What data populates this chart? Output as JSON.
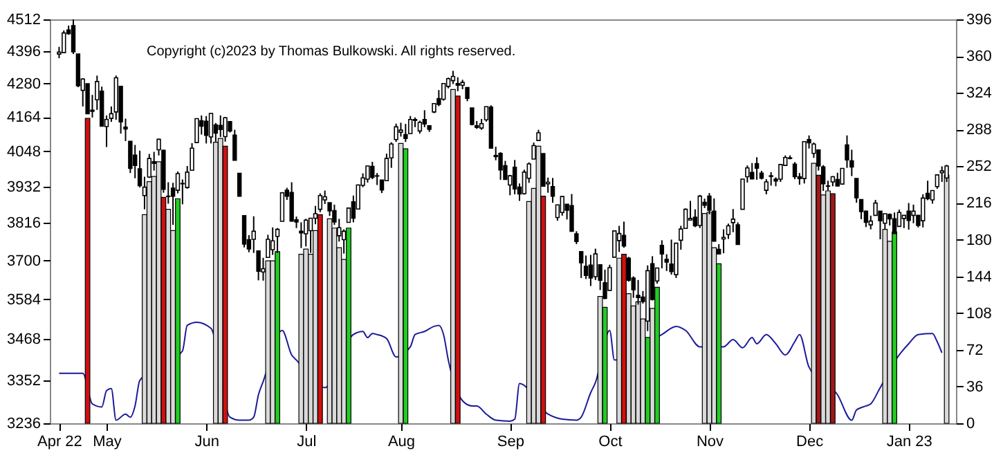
{
  "chart_data": {
    "type": "candlestick",
    "annotations": [
      "Copyright (c)2023 by Thomas Bulkowski. All rights reserved."
    ],
    "log": "y",
    "ylim": [
      3236,
      4512
    ],
    "yticks": [
      3236,
      3352,
      3468,
      3584,
      3700,
      3816,
      3932,
      4048,
      4164,
      4280,
      4396,
      4512
    ],
    "y2lim": [
      0,
      396
    ],
    "y2ticks": [
      0,
      36,
      72,
      108,
      144,
      180,
      216,
      252,
      288,
      324,
      360,
      396
    ],
    "categories": [
      "Apr 22",
      null,
      null,
      null,
      null,
      null,
      null,
      null,
      null,
      null,
      "May",
      null,
      null,
      null,
      null,
      null,
      null,
      null,
      null,
      null,
      null,
      null,
      null,
      null,
      null,
      null,
      null,
      null,
      null,
      null,
      null,
      "Jun",
      null,
      null,
      null,
      null,
      null,
      null,
      null,
      null,
      null,
      null,
      null,
      null,
      null,
      null,
      null,
      null,
      null,
      null,
      null,
      null,
      "Jul",
      null,
      null,
      null,
      null,
      null,
      null,
      null,
      null,
      null,
      null,
      null,
      null,
      null,
      null,
      null,
      null,
      null,
      null,
      null,
      "Aug",
      null,
      null,
      null,
      null,
      null,
      null,
      null,
      null,
      null,
      null,
      null,
      null,
      null,
      null,
      null,
      null,
      null,
      null,
      null,
      null,
      null,
      null,
      "Sep",
      null,
      null,
      null,
      null,
      null,
      null,
      null,
      null,
      null,
      null,
      null,
      null,
      null,
      null,
      null,
      null,
      null,
      null,
      null,
      null,
      "Oct",
      null,
      null,
      null,
      null,
      null,
      null,
      null,
      null,
      null,
      null,
      null,
      null,
      null,
      null,
      null,
      null,
      null,
      null,
      null,
      null,
      "Nov",
      null,
      null,
      null,
      null,
      null,
      null,
      null,
      null,
      null,
      null,
      null,
      null,
      null,
      null,
      null,
      null,
      null,
      null,
      null,
      null,
      "Dec",
      null,
      null,
      null,
      null,
      null,
      null,
      null,
      null,
      null,
      null,
      null,
      null,
      null,
      null,
      null,
      null,
      null,
      null,
      null,
      null,
      "Jan 23",
      null,
      null,
      null,
      null,
      null,
      null,
      null,
      null
    ],
    "ohlc": [
      [
        4385,
        4411,
        4370,
        4392
      ],
      [
        4390,
        4471,
        4390,
        4462
      ],
      [
        4473,
        4489,
        4455,
        4459
      ],
      [
        4489,
        4512,
        4385,
        4393
      ],
      [
        4385,
        4385,
        4267,
        4272
      ],
      [
        4256,
        4299,
        4200,
        4296
      ],
      [
        4279,
        4279,
        4175,
        4175
      ],
      [
        4187,
        4240,
        4162,
        4183
      ],
      [
        4223,
        4308,
        4188,
        4287
      ],
      [
        4253,
        4269,
        4131,
        4132
      ],
      [
        4131,
        4169,
        4062,
        4155
      ],
      [
        4159,
        4200,
        4147,
        4175
      ],
      [
        4181,
        4308,
        4154,
        4300
      ],
      [
        4270,
        4270,
        4107,
        4147
      ],
      [
        4129,
        4158,
        4082,
        4123
      ],
      [
        4081,
        4082,
        3976,
        3991
      ],
      [
        4035,
        4069,
        3959,
        4001
      ],
      [
        3990,
        4050,
        3929,
        3935
      ],
      [
        3903,
        3964,
        3859,
        3930
      ],
      [
        3963,
        4039,
        3960,
        4024
      ],
      [
        4013,
        4046,
        3984,
        4008
      ],
      [
        4053,
        4090,
        4034,
        4088
      ],
      [
        4051,
        4053,
        3912,
        3923
      ],
      [
        3900,
        3946,
        3877,
        3901
      ],
      [
        3927,
        3944,
        3810,
        3901
      ],
      [
        3920,
        3981,
        3910,
        3974
      ],
      [
        3942,
        3955,
        3875,
        3941
      ],
      [
        3929,
        3999,
        3925,
        3979
      ],
      [
        3985,
        4075,
        3984,
        4058
      ],
      [
        4077,
        4158,
        4077,
        4158
      ],
      [
        4151,
        4169,
        4104,
        4132
      ],
      [
        4149,
        4167,
        4074,
        4101
      ],
      [
        4096,
        4177,
        4074,
        4176
      ],
      [
        4137,
        4143,
        4080,
        4109
      ],
      [
        4135,
        4169,
        4096,
        4121
      ],
      [
        4097,
        4164,
        4080,
        4161
      ],
      [
        4148,
        4150,
        4111,
        4116
      ],
      [
        4102,
        4120,
        4017,
        4018
      ],
      [
        3975,
        3975,
        3900,
        3901
      ],
      [
        3839,
        3839,
        3740,
        3750
      ],
      [
        3764,
        3778,
        3725,
        3735
      ],
      [
        3765,
        3837,
        3723,
        3790
      ],
      [
        3729,
        3729,
        3640,
        3667
      ],
      [
        3665,
        3708,
        3639,
        3675
      ],
      [
        3709,
        3779,
        3709,
        3765
      ],
      [
        3733,
        3802,
        3717,
        3760
      ],
      [
        3774,
        3800,
        3723,
        3796
      ],
      [
        3821,
        3914,
        3821,
        3912
      ],
      [
        3920,
        3928,
        3889,
        3901
      ],
      [
        3913,
        3946,
        3820,
        3822
      ],
      [
        3826,
        3836,
        3800,
        3819
      ],
      [
        3790,
        3818,
        3738,
        3785
      ],
      [
        3782,
        3829,
        3743,
        3825
      ],
      [
        3792,
        3832,
        3723,
        3831
      ],
      [
        3831,
        3870,
        3812,
        3845
      ],
      [
        3859,
        3910,
        3850,
        3903
      ],
      [
        3889,
        3919,
        3876,
        3899
      ],
      [
        3880,
        3880,
        3838,
        3854
      ],
      [
        3855,
        3874,
        3810,
        3819
      ],
      [
        3776,
        3829,
        3758,
        3801
      ],
      [
        3764,
        3796,
        3721,
        3790
      ],
      [
        3818,
        3865,
        3818,
        3863
      ],
      [
        3883,
        3903,
        3818,
        3831
      ],
      [
        3860,
        3939,
        3860,
        3937
      ],
      [
        3936,
        3975,
        3930,
        3960
      ],
      [
        3956,
        4000,
        3945,
        3999
      ],
      [
        3998,
        4013,
        3956,
        3962
      ],
      [
        3966,
        3976,
        3937,
        3967
      ],
      [
        3953,
        3953,
        3911,
        3921
      ],
      [
        3951,
        4040,
        3951,
        4024
      ],
      [
        4026,
        4078,
        3993,
        4072
      ],
      [
        4087,
        4141,
        4079,
        4130
      ],
      [
        4112,
        4144,
        4097,
        4119
      ],
      [
        4104,
        4140,
        4079,
        4091
      ],
      [
        4107,
        4167,
        4107,
        4155
      ],
      [
        4155,
        4162,
        4129,
        4152
      ],
      [
        4116,
        4151,
        4107,
        4145
      ],
      [
        4155,
        4187,
        4129,
        4140
      ],
      [
        4134,
        4136,
        4113,
        4122
      ],
      [
        4181,
        4211,
        4177,
        4210
      ],
      [
        4227,
        4257,
        4201,
        4207
      ],
      [
        4225,
        4280,
        4220,
        4280
      ],
      [
        4270,
        4301,
        4263,
        4297
      ],
      [
        4290,
        4325,
        4278,
        4305
      ],
      [
        4280,
        4302,
        4253,
        4274
      ],
      [
        4274,
        4293,
        4260,
        4284
      ],
      [
        4266,
        4266,
        4218,
        4228
      ],
      [
        4195,
        4195,
        4135,
        4138
      ],
      [
        4134,
        4150,
        4123,
        4128
      ],
      [
        4126,
        4157,
        4120,
        4141
      ],
      [
        4154,
        4200,
        4148,
        4199
      ],
      [
        4198,
        4204,
        4057,
        4058
      ],
      [
        4034,
        4063,
        4018,
        4030
      ],
      [
        4041,
        4045,
        3954,
        3986
      ],
      [
        4000,
        4016,
        3954,
        3955
      ],
      [
        3937,
        3970,
        3904,
        3967
      ],
      [
        3995,
        4019,
        3907,
        3924
      ],
      [
        3930,
        3942,
        3886,
        3908
      ],
      [
        3909,
        3987,
        3906,
        3979
      ],
      [
        3959,
        4011,
        3944,
        4006
      ],
      [
        4022,
        4077,
        4022,
        4067
      ],
      [
        4084,
        4120,
        4084,
        4110
      ],
      [
        4040,
        4040,
        3933,
        3933
      ],
      [
        3941,
        3961,
        3912,
        3946
      ],
      [
        3932,
        3960,
        3880,
        3901
      ],
      [
        3833,
        3874,
        3823,
        3873
      ],
      [
        3849,
        3900,
        3839,
        3900
      ],
      [
        3875,
        3876,
        3827,
        3856
      ],
      [
        3871,
        3908,
        3789,
        3790
      ],
      [
        3782,
        3790,
        3750,
        3758
      ],
      [
        3727,
        3727,
        3647,
        3693
      ],
      [
        3682,
        3715,
        3644,
        3655
      ],
      [
        3686,
        3717,
        3623,
        3647
      ],
      [
        3651,
        3736,
        3641,
        3720
      ],
      [
        3687,
        3687,
        3611,
        3640
      ],
      [
        3633,
        3672,
        3584,
        3586
      ],
      [
        3610,
        3687,
        3610,
        3678
      ],
      [
        3710,
        3791,
        3710,
        3791
      ],
      [
        3761,
        3807,
        3726,
        3783
      ],
      [
        3777,
        3820,
        3739,
        3744
      ],
      [
        3707,
        3711,
        3636,
        3640
      ],
      [
        3647,
        3652,
        3588,
        3612
      ],
      [
        3595,
        3641,
        3568,
        3589
      ],
      [
        3590,
        3608,
        3571,
        3577
      ],
      [
        3520,
        3685,
        3491,
        3669
      ],
      [
        3690,
        3713,
        3580,
        3583
      ],
      [
        3638,
        3677,
        3630,
        3677
      ],
      [
        3746,
        3762,
        3676,
        3720
      ],
      [
        3703,
        3719,
        3668,
        3695
      ],
      [
        3689,
        3764,
        3657,
        3666
      ],
      [
        3657,
        3754,
        3647,
        3753
      ],
      [
        3762,
        3807,
        3733,
        3797
      ],
      [
        3799,
        3862,
        3799,
        3859
      ],
      [
        3825,
        3886,
        3824,
        3830
      ],
      [
        3834,
        3859,
        3803,
        3807
      ],
      [
        3808,
        3905,
        3800,
        3901
      ],
      [
        3881,
        3893,
        3863,
        3872
      ],
      [
        3901,
        3911,
        3843,
        3856
      ],
      [
        3853,
        3894,
        3758,
        3759
      ],
      [
        3734,
        3750,
        3720,
        3720
      ],
      [
        3766,
        3796,
        3722,
        3771
      ],
      [
        3780,
        3814,
        3766,
        3807
      ],
      [
        3817,
        3860,
        3787,
        3828
      ],
      [
        3810,
        3818,
        3749,
        3749
      ],
      [
        3859,
        3957,
        3859,
        3956
      ],
      [
        3964,
        4001,
        3945,
        3993
      ],
      [
        3978,
        4009,
        3956,
        3957
      ],
      [
        4007,
        4028,
        3954,
        3992
      ],
      [
        3976,
        3983,
        3955,
        3959
      ],
      [
        3920,
        3956,
        3907,
        3947
      ],
      [
        3967,
        3979,
        3935,
        3965
      ],
      [
        3956,
        3962,
        3933,
        3950
      ],
      [
        3956,
        4005,
        3947,
        4004
      ],
      [
        4001,
        4034,
        3999,
        4027
      ],
      [
        4024,
        4034,
        4021,
        4026
      ],
      [
        4005,
        4012,
        3956,
        3964
      ],
      [
        3964,
        3976,
        3938,
        3958
      ],
      [
        3958,
        4081,
        3942,
        4080
      ],
      [
        4087,
        4101,
        4057,
        4076
      ],
      [
        4041,
        4077,
        4026,
        4072
      ],
      [
        4052,
        4052,
        3984,
        3999
      ],
      [
        3996,
        4002,
        3918,
        3941
      ],
      [
        3934,
        3951,
        3919,
        3933
      ],
      [
        3947,
        3966,
        3933,
        3964
      ],
      [
        3955,
        3977,
        3933,
        3934
      ],
      [
        3940,
        3991,
        3939,
        3991
      ],
      [
        4069,
        4101,
        3993,
        4019
      ],
      [
        4016,
        4053,
        3966,
        3996
      ],
      [
        3958,
        3958,
        3880,
        3896
      ],
      [
        3890,
        3890,
        3828,
        3852
      ],
      [
        3853,
        3855,
        3803,
        3818
      ],
      [
        3810,
        3839,
        3796,
        3822
      ],
      [
        3840,
        3889,
        3839,
        3879
      ],
      [
        3853,
        3853,
        3765,
        3823
      ],
      [
        3815,
        3845,
        3797,
        3845
      ],
      [
        3843,
        3846,
        3808,
        3829
      ],
      [
        3829,
        3849,
        3783,
        3783
      ],
      [
        3805,
        3858,
        3805,
        3849
      ],
      [
        3830,
        3840,
        3800,
        3840
      ],
      [
        3853,
        3879,
        3795,
        3824
      ],
      [
        3840,
        3874,
        3815,
        3853
      ],
      [
        3840,
        3840,
        3802,
        3808
      ],
      [
        3823,
        3907,
        3802,
        3895
      ],
      [
        3910,
        3951,
        3888,
        3893
      ],
      [
        3889,
        3919,
        3877,
        3919
      ],
      [
        3932,
        3971,
        3925,
        3970
      ],
      [
        3977,
        3998,
        3947,
        3983
      ],
      [
        3960,
        4003,
        3947,
        3999
      ]
    ],
    "series": [
      {
        "type": "line",
        "axis": "y2",
        "color": "#1a1a9c",
        "values": [
          49,
          null,
          null,
          null,
          null,
          49,
          null,
          19,
          null,
          16,
          32,
          34,
          3,
          null,
          9,
          6,
          17,
          42,
          null,
          null,
          null,
          null,
          null,
          null,
          null,
          null,
          71,
          96,
          null,
          99,
          null,
          null,
          93,
          null,
          null,
          null,
          6,
          null,
          3,
          null,
          3,
          6,
          28,
          41,
          null,
          null,
          null,
          91,
          null,
          67,
          62,
          null,
          null,
          null,
          null,
          null,
          35,
          null,
          null,
          null,
          null,
          null,
          87,
          null,
          90,
          84,
          88,
          87,
          null,
          83,
          null,
          65,
          null,
          null,
          75,
          87,
          null,
          90,
          null,
          95,
          96,
          87,
          62,
          null,
          null,
          22,
          null,
          17,
          17,
          null,
          9,
          null,
          3,
          null,
          null,
          2,
          4,
          39,
          null,
          null,
          null,
          null,
          null,
          9,
          null,
          null,
          4,
          null,
          null,
          3,
          6,
          null,
          30,
          40,
          null,
          null,
          91,
          62,
          null,
          null,
          null,
          null,
          null,
          null,
          null,
          null,
          null,
          87,
          null,
          null,
          95,
          null,
          91,
          null,
          null,
          75,
          null,
          null,
          null,
          null,
          75,
          null,
          82,
          null,
          74,
          null,
          84,
          78,
          null,
          87,
          null,
          78,
          null,
          67,
          null,
          80,
          87,
          null,
          55,
          null,
          null,
          null,
          null,
          null,
          28,
          null,
          null,
          3,
          13,
          null,
          17,
          19,
          null,
          35,
          null,
          null,
          null,
          67,
          null,
          78,
          null,
          87,
          null,
          null,
          88,
          80,
          69,
          null
        ]
      },
      {
        "type": "bar",
        "values": [
          null,
          null,
          null,
          null,
          null,
          null,
          4159,
          null,
          null,
          null,
          null,
          null,
          null,
          null,
          null,
          null,
          null,
          null,
          3842,
          3948,
          3965,
          4013,
          3897,
          3859,
          3792,
          3893,
          null,
          null,
          null,
          null,
          null,
          null,
          null,
          4078,
          4091,
          4065,
          null,
          null,
          null,
          null,
          null,
          null,
          null,
          null,
          3699,
          3699,
          3727,
          null,
          null,
          null,
          null,
          3719,
          3735,
          3719,
          3792,
          3842,
          null,
          3829,
          3800,
          3739,
          3703,
          3800,
          null,
          null,
          null,
          null,
          null,
          null,
          null,
          null,
          null,
          null,
          4074,
          4056,
          null,
          null,
          null,
          null,
          null,
          null,
          null,
          null,
          null,
          4259,
          4236,
          null,
          null,
          null,
          null,
          null,
          null,
          null,
          null,
          null,
          null,
          null,
          null,
          null,
          null,
          3884,
          3926,
          4065,
          3901,
          null,
          null,
          null,
          null,
          null,
          null,
          null,
          null,
          null,
          null,
          null,
          3592,
          3560,
          null,
          null,
          3707,
          3719,
          3600,
          3564,
          3576,
          3526,
          3473,
          3557,
          3619,
          null,
          null,
          null,
          null,
          null,
          null,
          null,
          null,
          null,
          3846,
          3850,
          3739,
          3690,
          null,
          null,
          null,
          null,
          null,
          null,
          null,
          null,
          null,
          null,
          null,
          null,
          null,
          null,
          null,
          null,
          null,
          null,
          null,
          4008,
          3969,
          3905,
          3918,
          3909,
          null,
          null,
          null,
          null,
          null,
          null,
          null,
          null,
          null,
          null,
          3796,
          3759,
          3788,
          null,
          null,
          null,
          null,
          null,
          null,
          null,
          null,
          null,
          null,
          3969
        ],
        "colors": [
          null,
          null,
          null,
          null,
          null,
          null,
          "#d01010",
          null,
          null,
          null,
          null,
          null,
          null,
          null,
          null,
          null,
          null,
          null,
          "#d9d9d9",
          "#d9d9d9",
          "#d9d9d9",
          "#d9d9d9",
          "#d01010",
          "#d9d9d9",
          "#d9d9d9",
          "#22cc22",
          null,
          null,
          null,
          null,
          null,
          null,
          null,
          "#d9d9d9",
          "#d9d9d9",
          "#d01010",
          null,
          null,
          null,
          null,
          null,
          null,
          null,
          null,
          "#d9d9d9",
          "#d9d9d9",
          "#22cc22",
          null,
          null,
          null,
          null,
          "#d9d9d9",
          "#d9d9d9",
          "#d9d9d9",
          "#d9d9d9",
          "#d01010",
          null,
          "#d9d9d9",
          "#d9d9d9",
          "#d9d9d9",
          "#d9d9d9",
          "#22cc22",
          null,
          null,
          null,
          null,
          null,
          null,
          null,
          null,
          null,
          null,
          "#d9d9d9",
          "#22cc22",
          null,
          null,
          null,
          null,
          null,
          null,
          null,
          null,
          null,
          "#d9d9d9",
          "#d01010",
          null,
          null,
          null,
          null,
          null,
          null,
          null,
          null,
          null,
          null,
          null,
          null,
          null,
          null,
          "#d9d9d9",
          "#d9d9d9",
          "#d9d9d9",
          "#d01010",
          null,
          null,
          null,
          null,
          null,
          null,
          null,
          null,
          null,
          null,
          null,
          "#d9d9d9",
          "#22cc22",
          null,
          null,
          "#d9d9d9",
          "#d01010",
          "#d9d9d9",
          "#d9d9d9",
          "#d9d9d9",
          "#d9d9d9",
          "#22cc22",
          "#d9d9d9",
          "#22cc22",
          null,
          null,
          null,
          null,
          null,
          null,
          null,
          null,
          null,
          "#d9d9d9",
          "#d9d9d9",
          "#d9d9d9",
          "#22cc22",
          null,
          null,
          null,
          null,
          null,
          null,
          null,
          null,
          null,
          null,
          null,
          null,
          null,
          null,
          null,
          null,
          null,
          null,
          null,
          "#d9d9d9",
          "#a01818",
          "#d9d9d9",
          "#d9d9d9",
          "#a01818",
          null,
          null,
          null,
          null,
          null,
          null,
          null,
          null,
          null,
          null,
          "#d9d9d9",
          "#d9d9d9",
          "#22cc22",
          null,
          null,
          null,
          null,
          null,
          null,
          null,
          null,
          null,
          null,
          "#d9d9d9"
        ]
      }
    ]
  }
}
